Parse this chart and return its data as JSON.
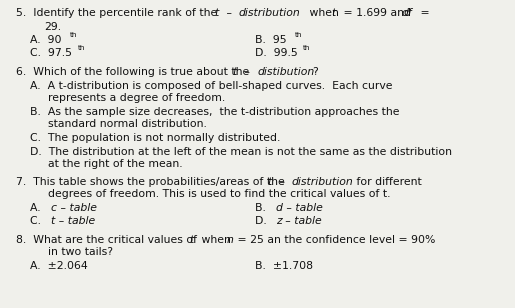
{
  "bg_color": "#f0f0eb",
  "text_color": "#111111",
  "fig_w": 5.15,
  "fig_h": 3.08,
  "dpi": 100,
  "font_size": 7.8,
  "font_family": "DejaVu Sans"
}
